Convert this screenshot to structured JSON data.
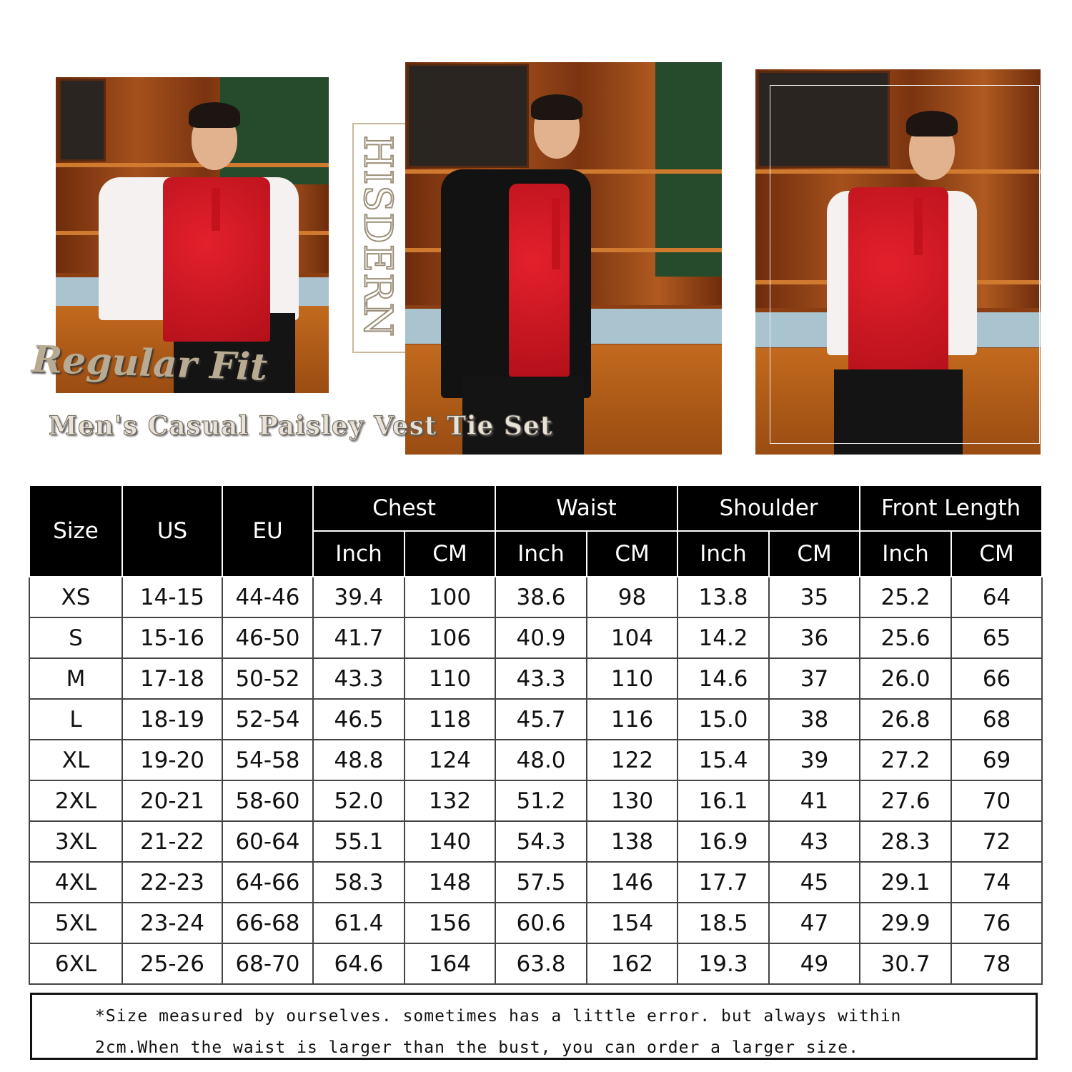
{
  "brand": "HISDERN",
  "fit_label": "Regular Fit",
  "product_title": "Men's Casual Paisley Vest Tie Set",
  "colors": {
    "vest": "#d8161f",
    "header_bg": "#000000",
    "header_text": "#ffffff"
  },
  "size_chart": {
    "group_headers": [
      "Chest",
      "Waist",
      "Shoulder",
      "Front Length"
    ],
    "fixed_headers": [
      "Size",
      "US",
      "EU"
    ],
    "unit_headers": [
      "Inch",
      "CM"
    ],
    "rows": [
      [
        "XS",
        "14-15",
        "44-46",
        "39.4",
        "100",
        "38.6",
        "98",
        "13.8",
        "35",
        "25.2",
        "64"
      ],
      [
        "S",
        "15-16",
        "46-50",
        "41.7",
        "106",
        "40.9",
        "104",
        "14.2",
        "36",
        "25.6",
        "65"
      ],
      [
        "M",
        "17-18",
        "50-52",
        "43.3",
        "110",
        "43.3",
        "110",
        "14.6",
        "37",
        "26.0",
        "66"
      ],
      [
        "L",
        "18-19",
        "52-54",
        "46.5",
        "118",
        "45.7",
        "116",
        "15.0",
        "38",
        "26.8",
        "68"
      ],
      [
        "XL",
        "19-20",
        "54-58",
        "48.8",
        "124",
        "48.0",
        "122",
        "15.4",
        "39",
        "27.2",
        "69"
      ],
      [
        "2XL",
        "20-21",
        "58-60",
        "52.0",
        "132",
        "51.2",
        "130",
        "16.1",
        "41",
        "27.6",
        "70"
      ],
      [
        "3XL",
        "21-22",
        "60-64",
        "55.1",
        "140",
        "54.3",
        "138",
        "16.9",
        "43",
        "28.3",
        "72"
      ],
      [
        "4XL",
        "22-23",
        "64-66",
        "58.3",
        "148",
        "57.5",
        "146",
        "17.7",
        "45",
        "29.1",
        "74"
      ],
      [
        "5XL",
        "23-24",
        "66-68",
        "61.4",
        "156",
        "60.6",
        "154",
        "18.5",
        "47",
        "29.9",
        "76"
      ],
      [
        "6XL",
        "25-26",
        "68-70",
        "64.6",
        "164",
        "63.8",
        "162",
        "19.3",
        "49",
        "30.7",
        "78"
      ]
    ]
  },
  "note": {
    "line1": "*Size measured by ourselves. sometimes has a little error. but always within",
    "line2": "2cm.When the waist is larger than the bust, you can order a larger size."
  }
}
